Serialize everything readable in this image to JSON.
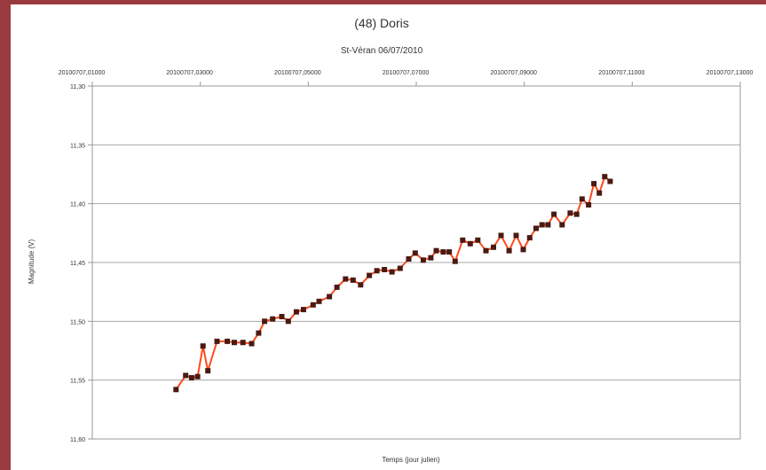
{
  "chart_data": {
    "type": "line",
    "title": "(48) Doris",
    "subtitle": "St-Véran 06/07/2010",
    "xlabel": "Temps (jour julien)",
    "ylabel": "Magnitude (V)",
    "x_ticks": [
      "20100707,01000",
      "20100707,03000",
      "20100707,05000",
      "20100707,07000",
      "20100707,09000",
      "20100707,11000",
      "20100707,13000"
    ],
    "y_ticks": [
      "11,30",
      "11,35",
      "11,40",
      "11,45",
      "11,50",
      "11,55",
      "11,60"
    ],
    "xlim": [
      0.01,
      0.13
    ],
    "ylim": [
      11.6,
      11.3
    ],
    "y_inverted": true,
    "grid": "horizontal",
    "line_color": "#ff4a1c",
    "marker_color": "#4a1a12",
    "series": [
      {
        "x": [
          0.0255,
          0.0273,
          0.0284,
          0.0295,
          0.0305,
          0.0314,
          0.0331,
          0.035,
          0.0363,
          0.0379,
          0.0395,
          0.0408,
          0.0419,
          0.0434,
          0.0451,
          0.0463,
          0.0478,
          0.0491,
          0.0509,
          0.052,
          0.0539,
          0.0553,
          0.0569,
          0.0583,
          0.0597,
          0.0613,
          0.0627,
          0.0641,
          0.0655,
          0.067,
          0.0686,
          0.0698,
          0.0713,
          0.0727,
          0.0737,
          0.075,
          0.0761,
          0.0772,
          0.0786,
          0.08,
          0.0814,
          0.0829,
          0.0843,
          0.0857,
          0.0872,
          0.0885,
          0.0898,
          0.091,
          0.0922,
          0.0933,
          0.0944,
          0.0955,
          0.097,
          0.0985,
          0.0997,
          0.1007,
          0.1019,
          0.1029,
          0.1039,
          0.1049,
          0.1059
        ],
        "y": [
          11.558,
          11.546,
          11.548,
          11.547,
          11.521,
          11.542,
          11.517,
          11.517,
          11.518,
          11.518,
          11.519,
          11.51,
          11.5,
          11.498,
          11.496,
          11.5,
          11.492,
          11.49,
          11.486,
          11.483,
          11.479,
          11.471,
          11.464,
          11.465,
          11.469,
          11.461,
          11.457,
          11.456,
          11.458,
          11.455,
          11.447,
          11.442,
          11.448,
          11.446,
          11.44,
          11.441,
          11.441,
          11.449,
          11.431,
          11.434,
          11.431,
          11.44,
          11.437,
          11.427,
          11.44,
          11.427,
          11.439,
          11.429,
          11.421,
          11.418,
          11.418,
          11.409,
          11.418,
          11.408,
          11.409,
          11.396,
          11.401,
          11.383,
          11.391,
          11.377,
          11.381
        ]
      }
    ]
  }
}
